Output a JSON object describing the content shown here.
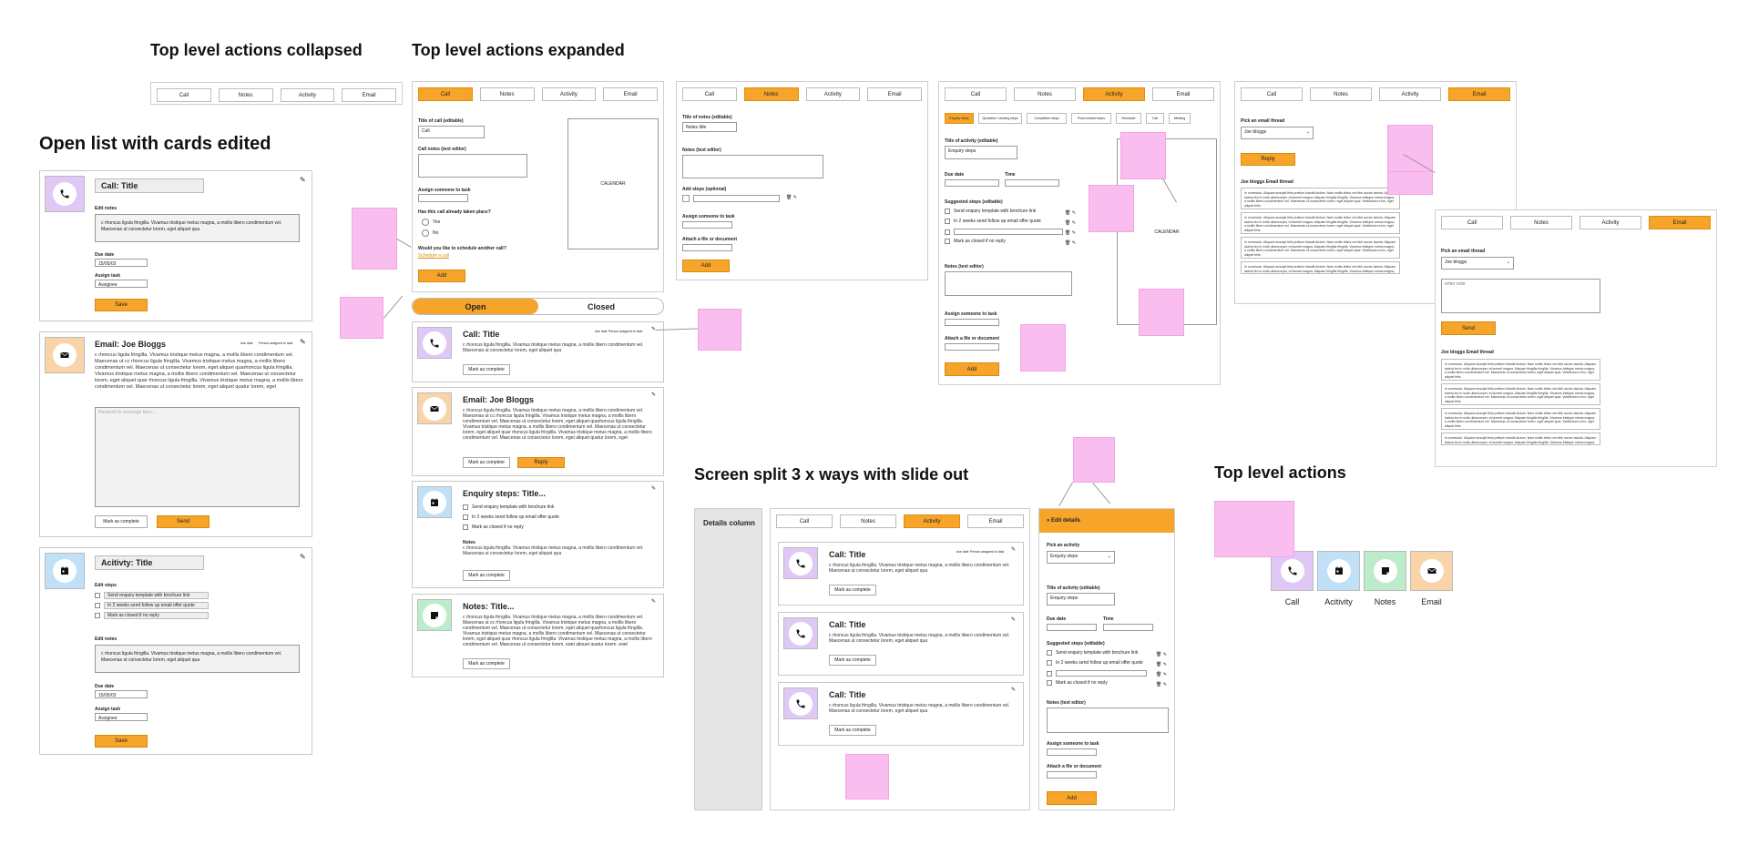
{
  "headings": {
    "collapsed": "Top level actions collapsed",
    "expanded": "Top level actions expanded",
    "open_list": "Open list with cards edited",
    "split": "Screen split 3 x ways with slide out",
    "top_level": "Top level actions"
  },
  "tabs": [
    "Call",
    "Notes",
    "Activity",
    "Email"
  ],
  "colors": {
    "accent": "#f7a52a",
    "sticky": "#f9bdf0",
    "call": "#e0c8f6",
    "activity": "#bfe0f7",
    "notes": "#bdeccb",
    "email": "#f8d4a8"
  },
  "lorem": "c rhoncus ligula fringilla. Vivamus tristique metus magna, a mollis libero condimentum vel. Maecenas ut consectetur lorem, eget aliquet qua",
  "lorem_long": "c rhoncus ligula fringilla. Vivamus tristique metus magna, a mollis libero condimentum vel. Maecenas ut cc rhoncus ligula fringilla. Vivamus tristique metus magna, a mollis libero condimentum vel. Maecenas ut consectetur lorem, eget aliquet quarhoncus ligula fringilla. Vivamus tristique metus magna, a mollis libero condimentum vel. Maecenas ut consectetur lorem, eget aliquet quar rhoncus ligula fringilla. Vivamus tristique metus magna, a mollis libero condimentum vel. Maecenas ut consectetur lorem, eget aliquet quatur lorem, eget",
  "email_lorem": "In commodo. Aliquam suscipit felis pretium blandit dictum. Nam mollis tellus vel nibh auctor lacinia. Aliquam lacinia leo in nulla ullamcorper, et laoreet magna. Aliquam fringilla fringilla. Vivamus tristique metus magna, a mollis libero condimentum vel. Maecenas ut consectetur lorem, eget aliquet quar. Vestibulum a leo, eget aliquet felis.",
  "open_list": {
    "call_card": {
      "title": "Call: Title",
      "edit_notes": "Edit notes",
      "due_label": "Due date",
      "due_value": "15/05/03",
      "assign_label": "Assign task",
      "assign_value": "Assignee",
      "save": "Save"
    },
    "email_card": {
      "title": "Email: Joe Bloggs",
      "meta_date": "due date",
      "meta_person": "Person assigned to task",
      "placeholder": "Respond to message here...",
      "complete": "Mark as complete",
      "send": "Send"
    },
    "activity_card": {
      "title": "Acitivty: Title",
      "edit_steps": "Edit steps",
      "steps": [
        "Send enquiry template with brochure link",
        "In 2 weeks send follow up email offer quote",
        "Mark as closed if no reply"
      ],
      "edit_notes": "Edit notes",
      "due_label": "Due date",
      "due_value": "15/05/03",
      "assign_label": "Assign task",
      "assign_value": "Assignee",
      "save": "Save"
    }
  },
  "call_form": {
    "title_label": "Title of call (editable)",
    "title_value": "Call",
    "notes_label": "Call notes (text editor)",
    "assign_label": "Assign someone to task",
    "question": "Has this call already taken place?",
    "yes": "Yes",
    "no": "No",
    "schedule_q": "Would you like to schedule another call?",
    "schedule_link": "Schedule a call",
    "calendar": "CALENDAR",
    "add": "Add"
  },
  "notes_form": {
    "title_label": "Title of notes (editable)",
    "title_value": "Notes title",
    "notes_label": "Notes (text editor)",
    "steps_label": "Add steps (optional)",
    "assign_label": "Assign someone to task",
    "attach_label": "Attach a file or document",
    "add": "Add"
  },
  "activity_form": {
    "chips": [
      "Enquiry steps",
      "Quotation / viewing steps",
      "Completion steps",
      "Post-contract steps",
      "Reminder",
      "Call",
      "Meeting"
    ],
    "title_label": "Title of activity (editable)",
    "title_value": "Enquiry steps",
    "due_label": "Due date",
    "time_label": "Time",
    "steps_label": "Suggested steps (editable)",
    "steps": [
      "Send enquiry template with brochure link",
      "In 2 weeks send follow up email offer quote",
      "",
      "Mark as closed if no reply"
    ],
    "notes_label": "Notes (text editor)",
    "assign_label": "Assign someone to task",
    "attach_label": "Attach a file or document",
    "calendar": "CALENDAR",
    "add": "Add"
  },
  "email_form": {
    "pick_label": "Pick an email thread",
    "pick_value": "Joe bloggs",
    "reply": "Reply",
    "thread_label": "Joe bloggs Email thread",
    "email_placeholder": "enter note",
    "send": "Send"
  },
  "status": {
    "open": "Open",
    "closed": "Closed"
  },
  "mid_cards": [
    {
      "title": "Call: Title",
      "btn": "Mark as complete"
    },
    {
      "title": "Email: Joe Bloggs",
      "btn": "Mark as complete",
      "reply": "Reply"
    },
    {
      "title": "Enquiry steps: Title...",
      "notes": "Notes",
      "btn": "Mark as complete"
    },
    {
      "title": "Notes: Title...",
      "btn": "Mark as complete"
    }
  ],
  "split": {
    "details": "Details column",
    "slide_title": "Edit details",
    "pick_label": "Pick an activity",
    "pick_value": "Enquiry steps",
    "cards": [
      "Call: Title",
      "Call: Title",
      "Call: Title"
    ],
    "complete": "Mark as complete"
  },
  "top_level_labels": [
    "Call",
    "Acitivity",
    "Notes",
    "Email"
  ]
}
